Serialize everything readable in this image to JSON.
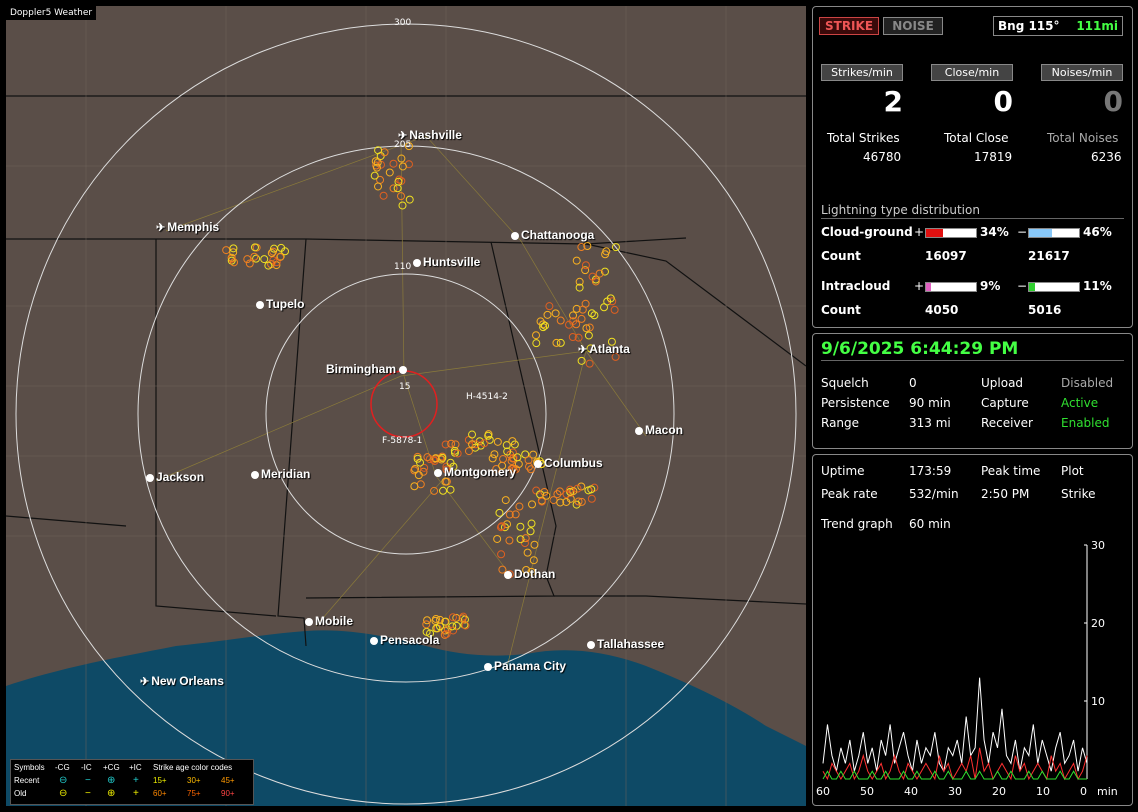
{
  "app_title": "Doppler5 Weather",
  "map": {
    "ring_labels": [
      "300",
      "205",
      "110",
      "15"
    ],
    "cities": [
      {
        "name": "Nashville",
        "kind": "airport"
      },
      {
        "name": "Memphis",
        "kind": "airport"
      },
      {
        "name": "Chattanooga",
        "kind": "city"
      },
      {
        "name": "Huntsville",
        "kind": "city"
      },
      {
        "name": "Tupelo",
        "kind": "city"
      },
      {
        "name": "Atlanta",
        "kind": "airport"
      },
      {
        "name": "Birmingham",
        "kind": "city"
      },
      {
        "name": "Macon",
        "kind": "city"
      },
      {
        "name": "Columbus",
        "kind": "city"
      },
      {
        "name": "Montgomery",
        "kind": "city"
      },
      {
        "name": "Jackson",
        "kind": "city"
      },
      {
        "name": "Meridian",
        "kind": "city"
      },
      {
        "name": "Dothan",
        "kind": "city"
      },
      {
        "name": "Mobile",
        "kind": "city"
      },
      {
        "name": "Pensacola",
        "kind": "city"
      },
      {
        "name": "Tallahassee",
        "kind": "city"
      },
      {
        "name": "Panama City",
        "kind": "city"
      },
      {
        "name": "New Orleans",
        "kind": "airport"
      }
    ],
    "tracks": [
      "H-4514-2",
      "F-5878-1"
    ],
    "legend": {
      "symbols_label": "Symbols",
      "cols": [
        "-CG",
        "-IC",
        "+CG",
        "+IC"
      ],
      "recent_label": "Recent",
      "old_label": "Old",
      "age_title": "Strike age color codes",
      "recent_ages": [
        "15+",
        "30+",
        "45+"
      ],
      "old_ages": [
        "60+",
        "75+",
        "90+"
      ]
    }
  },
  "status": {
    "strike_label": "STRIKE",
    "noise_label": "NOISE",
    "bearing": "Bng 115°",
    "distance": "111mi",
    "rates": [
      {
        "label": "Strikes/min",
        "value": "2"
      },
      {
        "label": "Close/min",
        "value": "0"
      },
      {
        "label": "Noises/min",
        "value": "0"
      }
    ],
    "totals": [
      {
        "label": "Total Strikes",
        "value": "46780"
      },
      {
        "label": "Total Close",
        "value": "17819"
      },
      {
        "label": "Total Noises",
        "value": "6236"
      }
    ],
    "distribution_title": "Lightning type distribution",
    "cloud_ground": {
      "label": "Cloud-ground",
      "pos_sign": "+",
      "pos_pct": "34%",
      "pos_fraction": 0.34,
      "neg_sign": "−",
      "neg_pct": "46%",
      "neg_fraction": 0.46,
      "count_label": "Count",
      "pos_count": "16097",
      "neg_count": "21617"
    },
    "intracloud": {
      "label": "Intracloud",
      "pos_sign": "+",
      "pos_pct": "9%",
      "pos_fraction": 0.09,
      "neg_sign": "−",
      "neg_pct": "11%",
      "neg_fraction": 0.11,
      "count_label": "Count",
      "pos_count": "4050",
      "neg_count": "5016"
    },
    "colors": {
      "cg_pos": "#e01010",
      "cg_neg": "#88c8f8",
      "ic_pos": "#e060c0",
      "ic_neg": "#30d030",
      "active": "#30e030"
    }
  },
  "settings": {
    "datetime": "9/6/2025 6:44:29 PM",
    "squelch_label": "Squelch",
    "squelch": "0",
    "persistence_label": "Persistence",
    "persistence": "90 min",
    "range_label": "Range",
    "range": "313 mi",
    "upload_label": "Upload",
    "upload": "Disabled",
    "capture_label": "Capture",
    "capture": "Active",
    "receiver_label": "Receiver",
    "receiver": "Enabled"
  },
  "trend": {
    "uptime_label": "Uptime",
    "uptime": "173:59",
    "peak_time_label": "Peak time",
    "peak_time": "2:50 PM",
    "plot_label": "Plot",
    "plot": "Strike",
    "peak_rate_label": "Peak rate",
    "peak_rate": "532/min",
    "graph_label": "Trend graph",
    "graph_window": "60 min",
    "y_ticks": [
      "30",
      "20",
      "10"
    ],
    "x_ticks": [
      "60",
      "50",
      "40",
      "30",
      "20",
      "10",
      "0"
    ],
    "x_unit": "min"
  },
  "chart_data": {
    "type": "line",
    "xlabel": "min",
    "xlim": [
      60,
      0
    ],
    "ylim": [
      0,
      30
    ],
    "x_ticks": [
      60,
      50,
      40,
      30,
      20,
      10,
      0
    ],
    "y_ticks": [
      30,
      20,
      10
    ],
    "series": [
      {
        "color": "#ffffff",
        "values": [
          2,
          7,
          3,
          1,
          4,
          2,
          5,
          1,
          3,
          6,
          2,
          4,
          1,
          5,
          3,
          7,
          2,
          4,
          6,
          3,
          1,
          5,
          2,
          4,
          3,
          6,
          2,
          1,
          4,
          3,
          5,
          2,
          8,
          3,
          4,
          13,
          5,
          2,
          6,
          4,
          9,
          3,
          2,
          5,
          1,
          4,
          3,
          7,
          2,
          5,
          3,
          1,
          4,
          6,
          2,
          3,
          5,
          1,
          4,
          2
        ]
      },
      {
        "color": "#ff3030",
        "values": [
          1,
          0,
          2,
          1,
          0,
          1,
          2,
          0,
          1,
          3,
          1,
          0,
          1,
          2,
          0,
          1,
          3,
          1,
          0,
          2,
          1,
          0,
          1,
          2,
          1,
          0,
          3,
          1,
          2,
          0,
          1,
          2,
          1,
          3,
          0,
          4,
          1,
          2,
          0,
          1,
          2,
          1,
          0,
          3,
          1,
          2,
          0,
          1,
          2,
          1,
          0,
          3,
          1,
          2,
          0,
          1,
          2,
          0,
          1,
          3
        ]
      },
      {
        "color": "#30e030",
        "values": [
          0,
          1,
          0,
          0,
          1,
          0,
          0,
          1,
          0,
          0,
          0,
          1,
          0,
          0,
          1,
          0,
          0,
          0,
          1,
          0,
          0,
          1,
          0,
          0,
          0,
          1,
          0,
          0,
          1,
          0,
          0,
          0,
          1,
          0,
          0,
          1,
          0,
          0,
          0,
          1,
          0,
          0,
          1,
          0,
          0,
          0,
          1,
          0,
          0,
          1,
          0,
          0,
          0,
          1,
          0,
          0,
          1,
          0,
          0,
          0
        ]
      }
    ]
  }
}
